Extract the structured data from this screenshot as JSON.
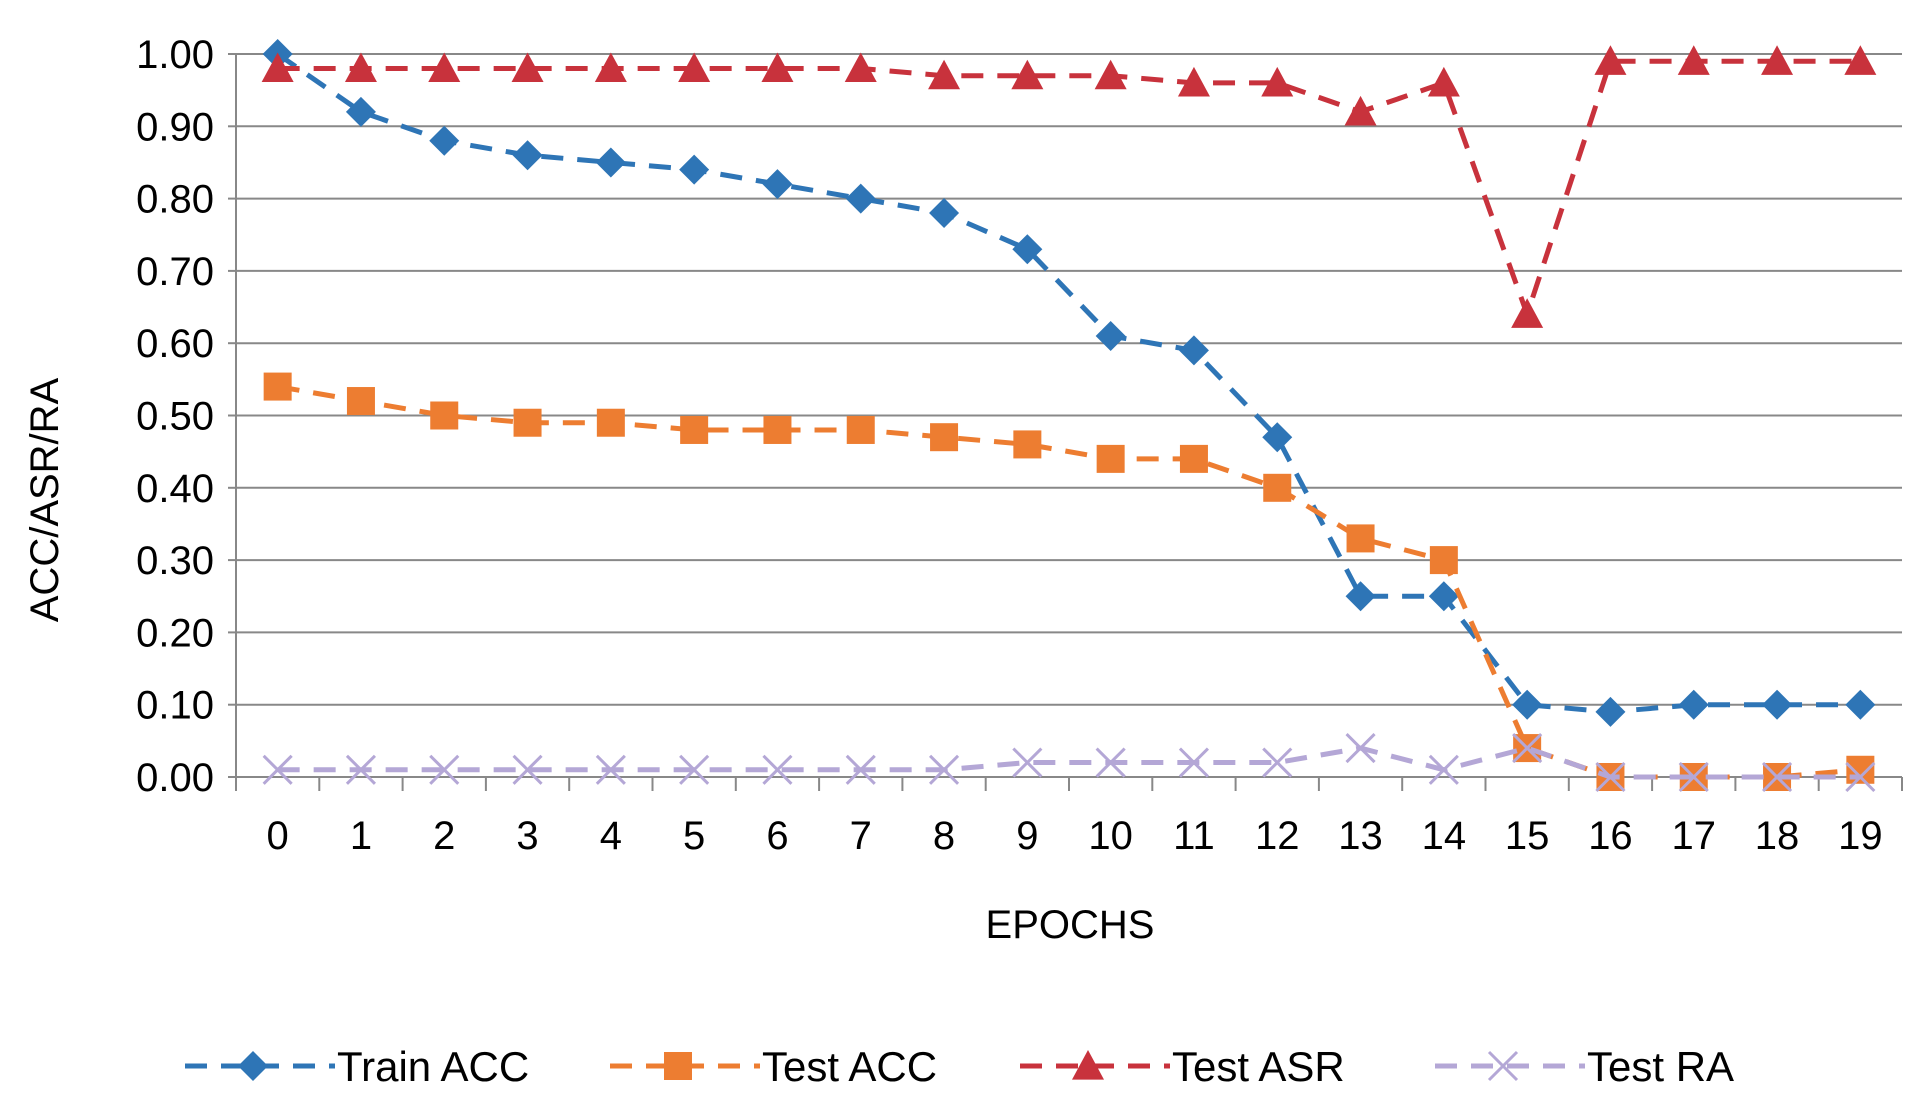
{
  "chart_data": {
    "type": "line",
    "title": "",
    "xlabel": "EPOCHS",
    "ylabel": "ACC/ASR/RA",
    "ylim": [
      0,
      1
    ],
    "y_ticks": [
      "0.00",
      "0.10",
      "0.20",
      "0.30",
      "0.40",
      "0.50",
      "0.60",
      "0.70",
      "0.80",
      "0.90",
      "1.00"
    ],
    "grid": true,
    "legend_position": "bottom",
    "x": [
      0,
      1,
      2,
      3,
      4,
      5,
      6,
      7,
      8,
      9,
      10,
      11,
      12,
      13,
      14,
      15,
      16,
      17,
      18,
      19
    ],
    "series": [
      {
        "name": "Train ACC",
        "color": "#2E75B6",
        "marker": "diamond",
        "values": [
          1.0,
          0.92,
          0.88,
          0.86,
          0.85,
          0.84,
          0.82,
          0.8,
          0.78,
          0.73,
          0.61,
          0.59,
          0.47,
          0.25,
          0.25,
          0.1,
          0.09,
          0.1,
          0.1,
          0.1
        ]
      },
      {
        "name": "Test ACC",
        "color": "#ED7D31",
        "marker": "square",
        "values": [
          0.54,
          0.52,
          0.5,
          0.49,
          0.49,
          0.48,
          0.48,
          0.48,
          0.47,
          0.46,
          0.44,
          0.44,
          0.4,
          0.33,
          0.3,
          0.04,
          0.0,
          0.0,
          0.0,
          0.01
        ]
      },
      {
        "name": "Test ASR",
        "color": "#C8323C",
        "marker": "triangle",
        "values": [
          0.98,
          0.98,
          0.98,
          0.98,
          0.98,
          0.98,
          0.98,
          0.98,
          0.97,
          0.97,
          0.97,
          0.96,
          0.96,
          0.92,
          0.96,
          0.64,
          0.99,
          0.99,
          0.99,
          0.99
        ]
      },
      {
        "name": "Test RA",
        "color": "#B4A7D6",
        "marker": "x",
        "values": [
          0.01,
          0.01,
          0.01,
          0.01,
          0.01,
          0.01,
          0.01,
          0.01,
          0.01,
          0.02,
          0.02,
          0.02,
          0.02,
          0.04,
          0.01,
          0.04,
          0.0,
          0.0,
          0.0,
          0.0
        ]
      }
    ]
  }
}
